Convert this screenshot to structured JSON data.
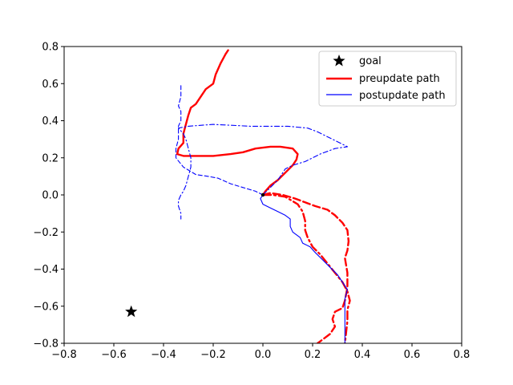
{
  "chart_data": {
    "type": "line",
    "title": "",
    "xlabel": "",
    "ylabel": "",
    "xlim": [
      -0.8,
      0.8
    ],
    "ylim": [
      -0.8,
      0.8
    ],
    "xticks": [
      "−0.8",
      "−0.6",
      "−0.4",
      "−0.2",
      "0.0",
      "0.2",
      "0.4",
      "0.6",
      "0.8"
    ],
    "yticks": [
      "−0.8",
      "−0.6",
      "−0.4",
      "−0.2",
      "0.0",
      "0.2",
      "0.4",
      "0.6",
      "0.8"
    ],
    "grid": false,
    "legend_position": "top-right",
    "legend": [
      {
        "label": "goal",
        "marker": "star",
        "color": "#000000"
      },
      {
        "label": "preupdate path",
        "style": "solid-thick",
        "color": "#ff0000"
      },
      {
        "label": "postupdate path",
        "style": "solid-thin",
        "color": "#0000ff"
      }
    ],
    "goal": {
      "x": -0.53,
      "y": -0.63,
      "color": "#000000"
    },
    "series": [
      {
        "name": "preupdate path",
        "group": "preupdate",
        "style": "solid",
        "color": "#ff0000",
        "points": [
          [
            0,
            0
          ],
          [
            0.01,
            0.02
          ],
          [
            0.03,
            0.05
          ],
          [
            0.06,
            0.08
          ],
          [
            0.09,
            0.12
          ],
          [
            0.12,
            0.16
          ],
          [
            0.135,
            0.19
          ],
          [
            0.14,
            0.22
          ],
          [
            0.12,
            0.25
          ],
          [
            0.07,
            0.26
          ],
          [
            0.03,
            0.26
          ],
          [
            -0.03,
            0.25
          ],
          [
            -0.08,
            0.23
          ],
          [
            -0.13,
            0.22
          ],
          [
            -0.2,
            0.21
          ],
          [
            -0.27,
            0.21
          ],
          [
            -0.32,
            0.21
          ],
          [
            -0.345,
            0.22
          ],
          [
            -0.34,
            0.25
          ],
          [
            -0.32,
            0.28
          ],
          [
            -0.32,
            0.33
          ],
          [
            -0.31,
            0.38
          ],
          [
            -0.3,
            0.43
          ],
          [
            -0.29,
            0.47
          ],
          [
            -0.27,
            0.49
          ],
          [
            -0.25,
            0.53
          ],
          [
            -0.23,
            0.57
          ],
          [
            -0.2,
            0.6
          ],
          [
            -0.19,
            0.65
          ],
          [
            -0.17,
            0.71
          ],
          [
            -0.15,
            0.76
          ],
          [
            -0.14,
            0.78
          ]
        ]
      },
      {
        "name": "",
        "group": "preupdate",
        "style": "dashed",
        "color": "#ff0000",
        "points": [
          [
            0,
            0
          ],
          [
            0.03,
            0.01
          ],
          [
            0.08,
            0.0
          ],
          [
            0.13,
            -0.02
          ],
          [
            0.17,
            -0.04
          ],
          [
            0.21,
            -0.06
          ],
          [
            0.26,
            -0.08
          ],
          [
            0.29,
            -0.11
          ],
          [
            0.32,
            -0.15
          ],
          [
            0.34,
            -0.19
          ],
          [
            0.345,
            -0.25
          ],
          [
            0.34,
            -0.3
          ],
          [
            0.33,
            -0.34
          ],
          [
            0.34,
            -0.42
          ],
          [
            0.34,
            -0.5
          ],
          [
            0.33,
            -0.57
          ],
          [
            0.32,
            -0.61
          ],
          [
            0.29,
            -0.63
          ],
          [
            0.28,
            -0.67
          ],
          [
            0.29,
            -0.71
          ],
          [
            0.27,
            -0.75
          ],
          [
            0.24,
            -0.78
          ],
          [
            0.22,
            -0.8
          ]
        ]
      },
      {
        "name": "",
        "group": "preupdate",
        "style": "dashdot",
        "color": "#ff0000",
        "points": [
          [
            0,
            0
          ],
          [
            0.04,
            0.0
          ],
          [
            0.09,
            -0.01
          ],
          [
            0.14,
            -0.05
          ],
          [
            0.16,
            -0.09
          ],
          [
            0.17,
            -0.14
          ],
          [
            0.17,
            -0.19
          ],
          [
            0.18,
            -0.23
          ],
          [
            0.2,
            -0.28
          ],
          [
            0.23,
            -0.32
          ],
          [
            0.26,
            -0.37
          ],
          [
            0.29,
            -0.42
          ],
          [
            0.32,
            -0.47
          ],
          [
            0.34,
            -0.52
          ],
          [
            0.35,
            -0.57
          ],
          [
            0.34,
            -0.62
          ],
          [
            0.34,
            -0.68
          ],
          [
            0.33,
            -0.8
          ]
        ]
      },
      {
        "name": "postupdate path",
        "group": "postupdate",
        "style": "solid",
        "color": "#0000ff",
        "points": [
          [
            0,
            0
          ],
          [
            -0.01,
            -0.02
          ],
          [
            0.0,
            -0.05
          ],
          [
            0.03,
            -0.07
          ],
          [
            0.06,
            -0.09
          ],
          [
            0.09,
            -0.11
          ],
          [
            0.11,
            -0.13
          ],
          [
            0.11,
            -0.17
          ],
          [
            0.12,
            -0.2
          ],
          [
            0.15,
            -0.23
          ],
          [
            0.16,
            -0.26
          ],
          [
            0.19,
            -0.28
          ],
          [
            0.21,
            -0.31
          ],
          [
            0.24,
            -0.35
          ],
          [
            0.27,
            -0.39
          ],
          [
            0.3,
            -0.43
          ],
          [
            0.32,
            -0.47
          ],
          [
            0.34,
            -0.51
          ],
          [
            0.33,
            -0.56
          ],
          [
            0.33,
            -0.65
          ],
          [
            0.33,
            -0.8
          ]
        ]
      },
      {
        "name": "",
        "group": "postupdate",
        "style": "dashed",
        "color": "#0000ff",
        "points": [
          [
            0,
            0
          ],
          [
            -0.03,
            0.02
          ],
          [
            -0.08,
            0.04
          ],
          [
            -0.13,
            0.06
          ],
          [
            -0.18,
            0.09
          ],
          [
            -0.22,
            0.1
          ],
          [
            -0.27,
            0.11
          ],
          [
            -0.32,
            0.15
          ],
          [
            -0.35,
            0.2
          ],
          [
            -0.35,
            0.25
          ],
          [
            -0.34,
            0.3
          ],
          [
            -0.34,
            0.37
          ],
          [
            -0.33,
            0.4
          ],
          [
            -0.33,
            0.45
          ],
          [
            -0.34,
            0.48
          ],
          [
            -0.33,
            0.53
          ],
          [
            -0.33,
            0.59
          ]
        ]
      },
      {
        "name": "",
        "group": "postupdate",
        "style": "dashdot",
        "color": "#0000ff",
        "points": [
          [
            0,
            0
          ],
          [
            0.03,
            0.04
          ],
          [
            0.06,
            0.08
          ],
          [
            0.09,
            0.14
          ],
          [
            0.12,
            0.16
          ],
          [
            0.17,
            0.18
          ],
          [
            0.23,
            0.22
          ],
          [
            0.29,
            0.25
          ],
          [
            0.34,
            0.26
          ],
          [
            0.28,
            0.3
          ],
          [
            0.22,
            0.34
          ],
          [
            0.18,
            0.36
          ],
          [
            0.1,
            0.37
          ],
          [
            -0.05,
            0.37
          ],
          [
            -0.2,
            0.38
          ],
          [
            -0.3,
            0.37
          ],
          [
            -0.34,
            0.36
          ],
          [
            -0.32,
            0.33
          ],
          [
            -0.31,
            0.3
          ],
          [
            -0.3,
            0.25
          ],
          [
            -0.29,
            0.2
          ],
          [
            -0.29,
            0.15
          ],
          [
            -0.3,
            0.1
          ],
          [
            -0.31,
            0.05
          ],
          [
            -0.32,
            0.02
          ],
          [
            -0.33,
            0.0
          ],
          [
            -0.34,
            -0.03
          ],
          [
            -0.34,
            -0.06
          ],
          [
            -0.33,
            -0.1
          ],
          [
            -0.33,
            -0.13
          ]
        ]
      }
    ]
  }
}
